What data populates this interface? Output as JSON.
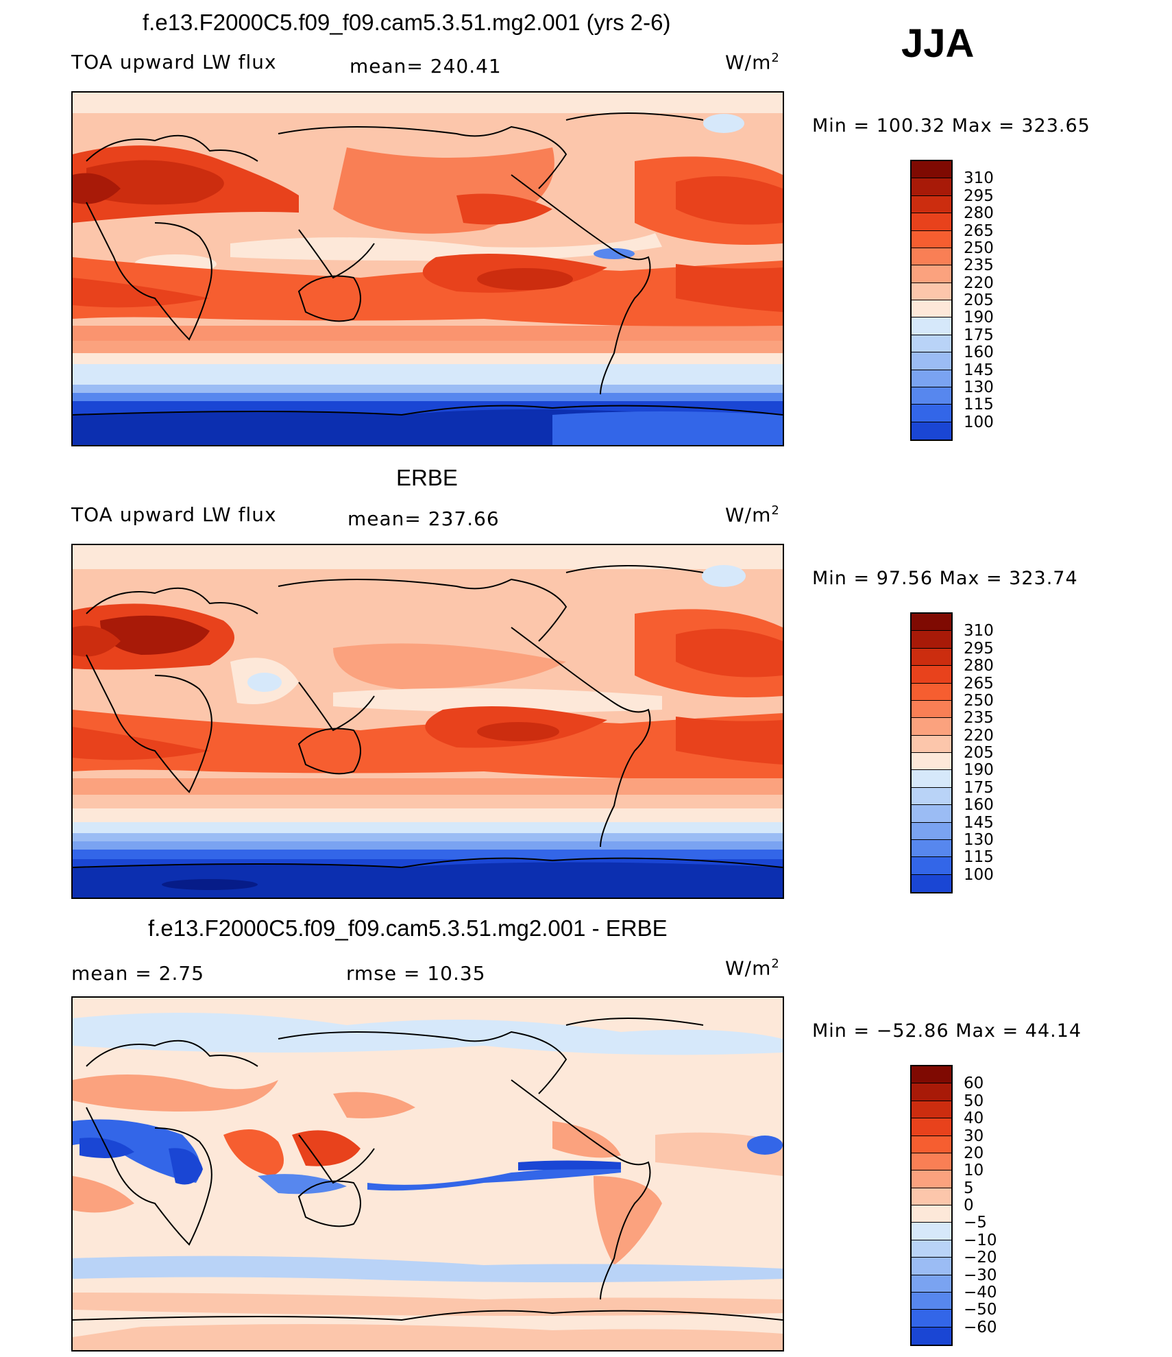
{
  "season": "JJA",
  "colors": {
    "warm": [
      "#fde8d9",
      "#fcc6ab",
      "#fba27e",
      "#f97f55",
      "#f65e30",
      "#e8421c",
      "#cc2d0f",
      "#a81a08",
      "#7f0a02"
    ],
    "cool": [
      "#d6e8fa",
      "#b9d3f7",
      "#9bbcf4",
      "#7aa3f1",
      "#5787ee",
      "#3366e8",
      "#1a46d4",
      "#0c2fb0",
      "#061c88",
      "#000a66"
    ],
    "ocean_antarctic": "#1a46d4",
    "coast": "#000000"
  },
  "panels": [
    {
      "title": "f.e13.F2000C5.f09_f09.cam5.3.51.mg2.001 (yrs 2-6)",
      "left_label": "TOA upward LW flux",
      "center_label": "mean=  240.41",
      "units_base": "W/m",
      "units_exp": "2",
      "minmax": "Min  =  100.32  Max  =  323.65",
      "levels": [
        "310",
        "295",
        "280",
        "265",
        "250",
        "235",
        "220",
        "205",
        "190",
        "175",
        "160",
        "145",
        "130",
        "115",
        "100"
      ]
    },
    {
      "title": "ERBE",
      "left_label": "TOA upward LW flux",
      "center_label": "mean=  237.66",
      "units_base": "W/m",
      "units_exp": "2",
      "minmax": "Min  =    97.56  Max  =  323.74",
      "levels": [
        "310",
        "295",
        "280",
        "265",
        "250",
        "235",
        "220",
        "205",
        "190",
        "175",
        "160",
        "145",
        "130",
        "115",
        "100"
      ]
    },
    {
      "title": "f.e13.F2000C5.f09_f09.cam5.3.51.mg2.001 - ERBE",
      "left_label": "mean  =      2.75",
      "center_label": "rmse  =     10.35",
      "units_base": "W/m",
      "units_exp": "2",
      "minmax": "Min  =  −52.86  Max  =    44.14",
      "levels": [
        "60",
        "50",
        "40",
        "30",
        "20",
        "10",
        "5",
        "0",
        "−5",
        "−10",
        "−20",
        "−30",
        "−40",
        "−50",
        "−60"
      ]
    }
  ]
}
